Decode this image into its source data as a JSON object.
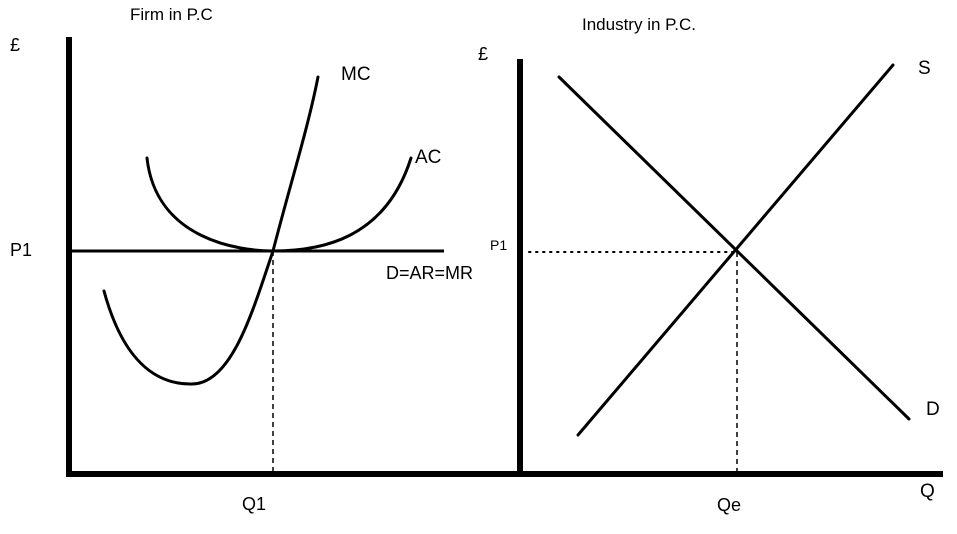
{
  "firm": {
    "title": "Firm in P.C",
    "y_axis_label": "£",
    "price_label": "P1",
    "quantity_label": "Q1",
    "mc_label": "MC",
    "ac_label": "AC",
    "demand_label": "D=AR=MR"
  },
  "industry": {
    "title": "Industry in P.C.",
    "y_axis_label": "£",
    "price_label": "P1",
    "quantity_label": "Qe",
    "x_axis_label": "Q",
    "supply_label": "S",
    "demand_label": "D"
  }
}
